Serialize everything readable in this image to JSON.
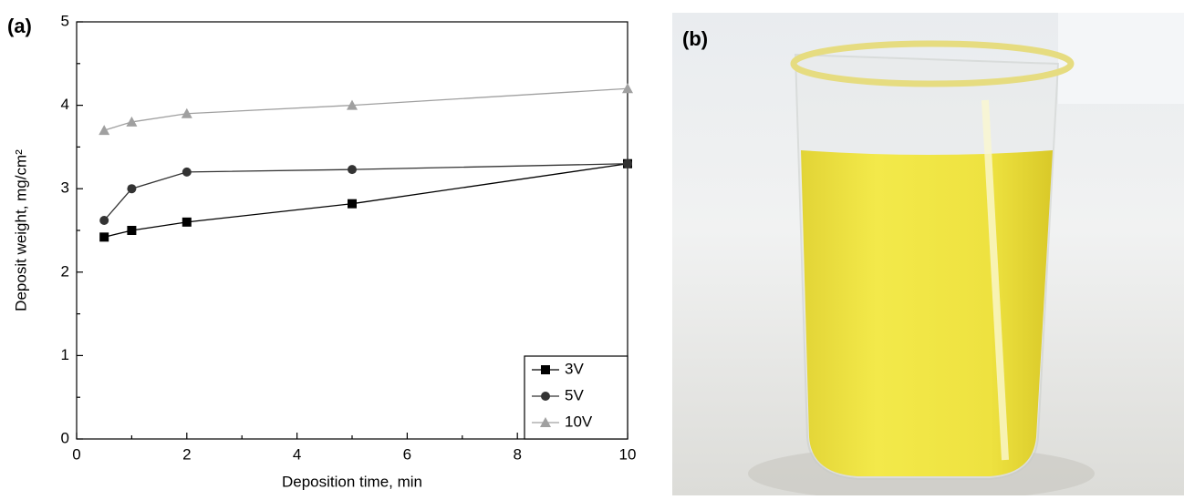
{
  "chart_data": {
    "type": "line",
    "panel_label": "(a)",
    "x_label": "Deposition time, min",
    "y_label": "Deposit weight, mg/cm²",
    "x": [
      0.5,
      1,
      2,
      5,
      10
    ],
    "series": [
      {
        "name": "3V",
        "color": "#000000",
        "marker": "square",
        "values": [
          2.42,
          2.5,
          2.6,
          2.82,
          3.3
        ]
      },
      {
        "name": "5V",
        "color": "#333333",
        "marker": "circle",
        "values": [
          2.62,
          3.0,
          3.2,
          3.23,
          3.3
        ]
      },
      {
        "name": "10V",
        "color": "#a0a0a0",
        "marker": "triangle",
        "values": [
          3.7,
          3.8,
          3.9,
          4.0,
          4.2
        ]
      }
    ],
    "xlim": [
      0,
      10
    ],
    "xticks": [
      0,
      2,
      4,
      6,
      8,
      10
    ],
    "ylim": [
      0,
      5
    ],
    "yticks": [
      0,
      1,
      2,
      3,
      4,
      5
    ],
    "grid": false,
    "legend": "lower right"
  },
  "photo": {
    "panel_label": "(b)"
  }
}
